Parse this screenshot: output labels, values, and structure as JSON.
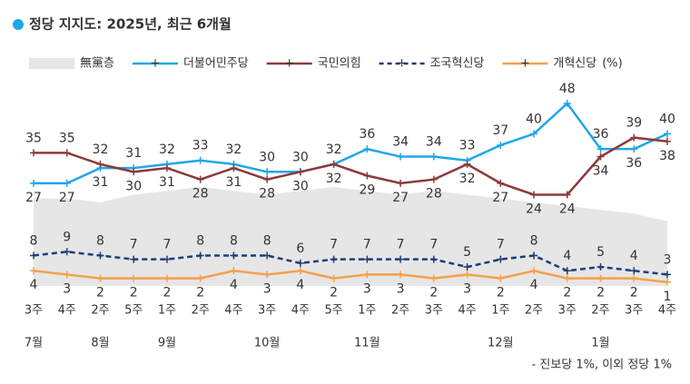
{
  "chart_data": {
    "type": "line",
    "title": "정당 지지도: 2025년, 최근 6개월",
    "categories": [
      "3주",
      "4주",
      "2주",
      "5주",
      "1주",
      "2주",
      "4주",
      "3주",
      "4주",
      "5주",
      "1주",
      "2주",
      "3주",
      "4주",
      "1주",
      "2주",
      "3주",
      "2주",
      "3주",
      "4주"
    ],
    "months": [
      {
        "label": "7월",
        "index": 0
      },
      {
        "label": "8월",
        "index": 2
      },
      {
        "label": "9월",
        "index": 4
      },
      {
        "label": "10월",
        "index": 7
      },
      {
        "label": "11월",
        "index": 10
      },
      {
        "label": "12월",
        "index": 14
      },
      {
        "label": "1월",
        "index": 17
      }
    ],
    "ylim": [
      0,
      50
    ],
    "unit": "(%)",
    "series": [
      {
        "name": "無黨층",
        "color": "#e6e6e6",
        "style": "area",
        "values": [
          23,
          23,
          22,
          24,
          25,
          26,
          25,
          24,
          25,
          26,
          25,
          24,
          25,
          24,
          23,
          22,
          21,
          20,
          19,
          17
        ]
      },
      {
        "name": "더불어민주당",
        "color": "#1ea7e8",
        "style": "solid",
        "values": [
          27,
          27,
          31,
          31,
          32,
          33,
          32,
          30,
          30,
          32,
          36,
          34,
          34,
          33,
          37,
          40,
          48,
          36,
          36,
          40
        ]
      },
      {
        "name": "국민의힘",
        "color": "#8b3a3a",
        "style": "solid",
        "values": [
          35,
          35,
          32,
          30,
          31,
          28,
          31,
          28,
          30,
          32,
          29,
          27,
          28,
          32,
          27,
          24,
          24,
          34,
          39,
          38
        ]
      },
      {
        "name": "조국혁신당",
        "color": "#1f3c78",
        "style": "dashed",
        "values": [
          8,
          9,
          8,
          7,
          7,
          8,
          8,
          8,
          6,
          7,
          7,
          7,
          7,
          5,
          7,
          8,
          4,
          5,
          4,
          3
        ]
      },
      {
        "name": "개혁신당",
        "color": "#f5a04a",
        "style": "solid",
        "values": [
          4,
          3,
          2,
          2,
          2,
          2,
          4,
          3,
          4,
          2,
          3,
          3,
          2,
          3,
          2,
          4,
          2,
          2,
          2,
          1
        ]
      }
    ],
    "footnote": "- 진보당 1%, 이외 정당 1%"
  }
}
